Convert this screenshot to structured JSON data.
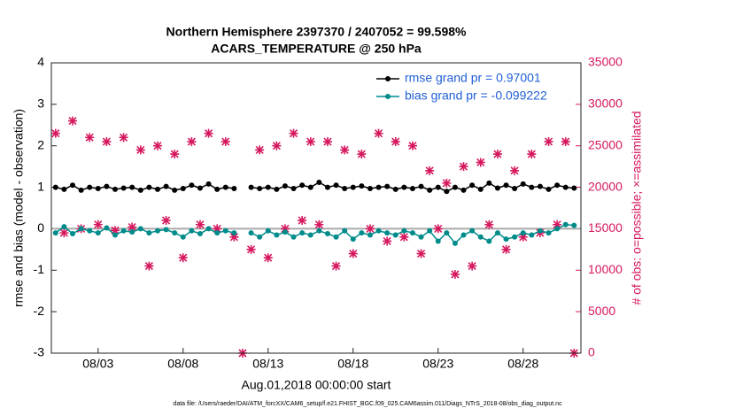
{
  "chart_data": {
    "type": "line",
    "title": "Northern Hemisphere 2397370 / 2407052 = 99.598%",
    "subtitle": "ACARS_TEMPERATURE @ 250 hPa",
    "ylabel": "rmse and bias (model - observation)",
    "y2label": "# of obs: o=possible; ×=assimilated",
    "xlabel": "Aug.01,2018 00:00:00 start",
    "footnote": "data file: /Users/raeder/DAI/ATM_forcXX/CAM6_setup/f.e21.FHIST_BGC.f09_025.CAM6assim.011/Diags_NTrS_2018-08/obs_diag_output.nc",
    "x": [
      -0.5,
      0,
      0.5,
      1,
      1.5,
      2,
      2.5,
      3,
      3.5,
      4,
      4.5,
      5,
      5.5,
      6,
      6.5,
      7,
      7.5,
      8,
      8.5,
      9,
      9.5,
      10,
      10.5,
      11,
      11.5,
      12,
      12.5,
      13,
      13.5,
      14,
      14.5,
      15,
      15.5,
      16,
      16.5,
      17,
      17.5,
      18,
      18.5,
      19,
      19.5,
      20,
      20.5,
      21,
      21.5,
      22,
      22.5,
      23,
      23.5,
      24,
      24.5,
      25,
      25.5,
      26,
      26.5,
      27,
      27.5,
      28,
      28.5,
      29,
      29.5,
      30
    ],
    "series": [
      {
        "name": "rmse grand pr = 0.97001",
        "color": "#000000",
        "values": [
          1.0,
          0.95,
          1.05,
          0.93,
          1.0,
          0.97,
          1.02,
          0.95,
          0.98,
          1.0,
          0.93,
          1.0,
          0.95,
          1.02,
          0.93,
          0.97,
          1.05,
          0.98,
          1.08,
          0.95,
          1.0,
          0.97,
          null,
          1.0,
          0.97,
          1.0,
          0.95,
          1.03,
          0.97,
          1.05,
          1.0,
          1.12,
          1.0,
          1.05,
          0.97,
          1.0,
          1.03,
          0.97,
          1.0,
          1.02,
          0.95,
          1.0,
          0.97,
          1.02,
          0.93,
          1.0,
          0.9,
          1.0,
          0.93,
          1.05,
          0.95,
          1.1,
          0.98,
          1.05,
          0.97,
          1.08,
          1.0,
          1.02,
          0.95,
          1.05,
          1.0,
          0.98
        ]
      },
      {
        "name": "bias grand pr = -0.099222",
        "color": "#008b8b",
        "values": [
          -0.1,
          0.05,
          -0.12,
          0.0,
          -0.05,
          -0.1,
          0.02,
          -0.15,
          -0.05,
          -0.08,
          0.0,
          -0.1,
          -0.05,
          -0.02,
          -0.1,
          -0.2,
          -0.05,
          -0.12,
          0.0,
          -0.1,
          -0.05,
          -0.1,
          null,
          -0.1,
          -0.2,
          -0.05,
          -0.15,
          -0.08,
          -0.2,
          -0.1,
          -0.15,
          -0.05,
          -0.12,
          -0.2,
          -0.05,
          -0.25,
          -0.1,
          -0.15,
          -0.05,
          -0.1,
          -0.15,
          -0.05,
          -0.1,
          -0.2,
          -0.05,
          -0.3,
          -0.1,
          -0.35,
          -0.15,
          -0.05,
          -0.2,
          -0.3,
          -0.1,
          -0.25,
          -0.2,
          -0.1,
          -0.15,
          -0.05,
          -0.1,
          0.0,
          0.1,
          0.08
        ]
      }
    ],
    "obs": {
      "axis": "y2",
      "color": "#d6185f",
      "values": [
        26500,
        14500,
        28000,
        15000,
        26000,
        15500,
        25500,
        14800,
        26000,
        15200,
        24500,
        10500,
        25000,
        16000,
        24000,
        11500,
        25500,
        15500,
        26500,
        15000,
        25500,
        14000,
        0,
        12500,
        24500,
        11500,
        25000,
        15000,
        26500,
        16000,
        25500,
        15500,
        25500,
        10500,
        24500,
        12000,
        24000,
        15000,
        26500,
        13500,
        25500,
        14000,
        25000,
        12000,
        22000,
        15000,
        20500,
        9500,
        22500,
        10500,
        23000,
        15500,
        24000,
        12500,
        22000,
        14000,
        24000,
        14500,
        25500,
        15500,
        25500,
        0
      ]
    },
    "xlim": [
      -0.75,
      30.4
    ],
    "xticks": [
      {
        "value": 2,
        "label": "08/03"
      },
      {
        "value": 7,
        "label": "08/08"
      },
      {
        "value": 12,
        "label": "08/13"
      },
      {
        "value": 17,
        "label": "08/18"
      },
      {
        "value": 22,
        "label": "08/23"
      },
      {
        "value": 27,
        "label": "08/28"
      }
    ],
    "ylim": [
      -3,
      4
    ],
    "yticks": [
      -3,
      -2,
      -1,
      0,
      1,
      2,
      3,
      4
    ],
    "y2lim": [
      0,
      35000
    ],
    "y2ticks": [
      0,
      5000,
      10000,
      15000,
      20000,
      25000,
      30000,
      35000
    ],
    "zero_line": true,
    "legend": "upper right",
    "legend_text_color": "#1f5fd6",
    "y2_color": "#d6185f"
  }
}
